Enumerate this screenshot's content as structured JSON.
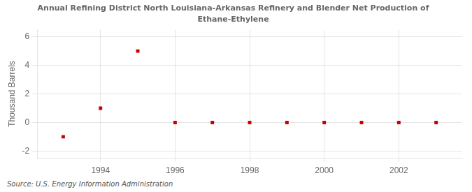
{
  "chart_data": {
    "type": "scatter",
    "title": "Annual Refining District North Louisiana-Arkansas Refinery and Blender Net Production of",
    "subtitle": "Ethane-Ethylene",
    "ylabel": "Thousand Barrels",
    "annotation": "Source: U.S. Energy Information Administration",
    "x": [
      1993,
      1994,
      1995,
      1996,
      1997,
      1998,
      1999,
      2000,
      2001,
      2002,
      2003
    ],
    "values": [
      -1,
      1,
      5,
      0,
      0,
      0,
      0,
      0,
      0,
      0,
      0
    ],
    "color": "#cc0000",
    "marker": "square",
    "xlim": [
      1992.3,
      2003.7
    ],
    "ylim": [
      -2.5,
      6.5
    ],
    "xticks": [
      1994,
      1996,
      1998,
      2000,
      2002
    ],
    "yticks": [
      -2,
      0,
      2,
      4,
      6
    ],
    "grid": true
  }
}
